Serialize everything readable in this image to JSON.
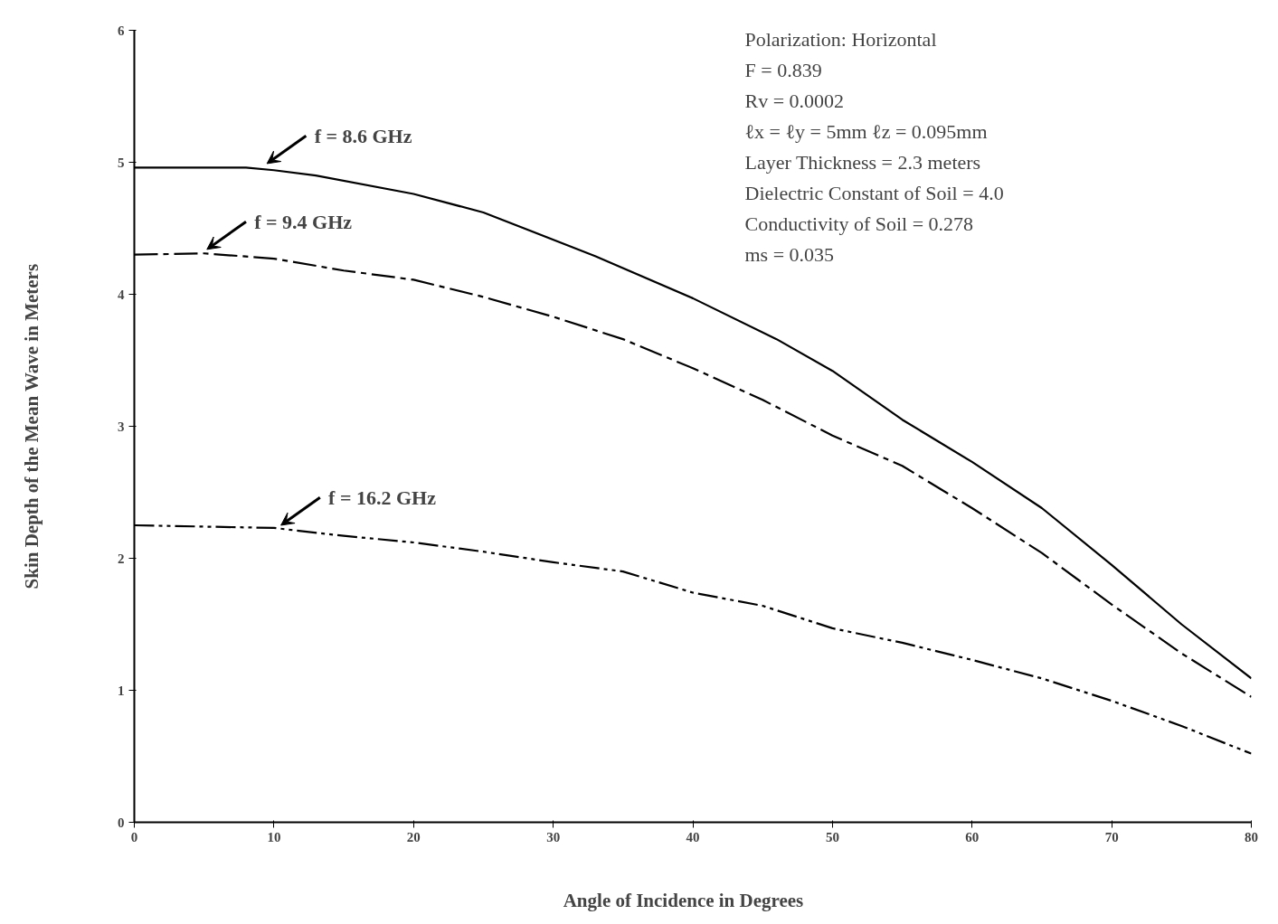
{
  "chart_data": {
    "type": "line",
    "xlabel": "Angle  of  Incidence  in  Degrees",
    "ylabel": "Skin Depth of the Mean Wave in Meters",
    "xlim": [
      0,
      80
    ],
    "ylim": [
      0,
      6
    ],
    "xticks": [
      0,
      10,
      20,
      30,
      40,
      50,
      60,
      70,
      80
    ],
    "yticks": [
      0,
      1,
      2,
      3,
      4,
      5,
      6
    ],
    "grid": false,
    "marker": "none",
    "series": [
      {
        "color": "#000000",
        "line_style": "solid",
        "x": [
          0,
          8,
          10,
          13,
          20,
          25,
          33,
          40,
          46,
          50,
          55,
          60,
          65,
          70,
          75,
          80
        ],
        "values": [
          4.96,
          4.96,
          4.94,
          4.9,
          4.76,
          4.62,
          4.29,
          3.97,
          3.66,
          3.42,
          3.05,
          2.73,
          2.38,
          1.95,
          1.5,
          1.09
        ]
      },
      {
        "color": "#000000",
        "line_style": "dashdot",
        "x": [
          0,
          5,
          10,
          15,
          20,
          25,
          30,
          35,
          40,
          45,
          50,
          55,
          60,
          65,
          70,
          75,
          80
        ],
        "values": [
          4.3,
          4.31,
          4.27,
          4.18,
          4.11,
          3.98,
          3.83,
          3.66,
          3.44,
          3.2,
          2.93,
          2.7,
          2.38,
          2.04,
          1.65,
          1.28,
          0.95
        ]
      },
      {
        "color": "#000000",
        "line_style": "dashdotdot",
        "x": [
          0,
          10,
          15,
          20,
          25,
          30,
          35,
          40,
          45,
          50,
          55,
          60,
          65,
          70,
          75,
          80
        ],
        "values": [
          2.25,
          2.23,
          2.17,
          2.12,
          2.05,
          1.97,
          1.9,
          1.74,
          1.64,
          1.47,
          1.36,
          1.23,
          1.09,
          0.92,
          0.73,
          0.52
        ]
      }
    ],
    "annotations": [
      {
        "text": "f  =  8.6 GHz",
        "x": 9.5,
        "y": 4.96
      },
      {
        "text": "f  =  9.4 GHz",
        "x": 5.2,
        "y": 4.31
      },
      {
        "text": "f  =  16.2 GHz",
        "x": 10.5,
        "y": 2.22
      },
      "Polarization:  Horizontal",
      "F    =    0.839",
      "Rv  =    0.0002",
      "ℓx  =   ℓy   =   5mm        ℓz  =   0.095mm",
      "Layer Thickness  =   2.3 meters",
      "Dielectric Constant of Soil  =  4.0",
      "Conductivity of Soil  =  0.278",
      "ms  =    0.035"
    ]
  }
}
